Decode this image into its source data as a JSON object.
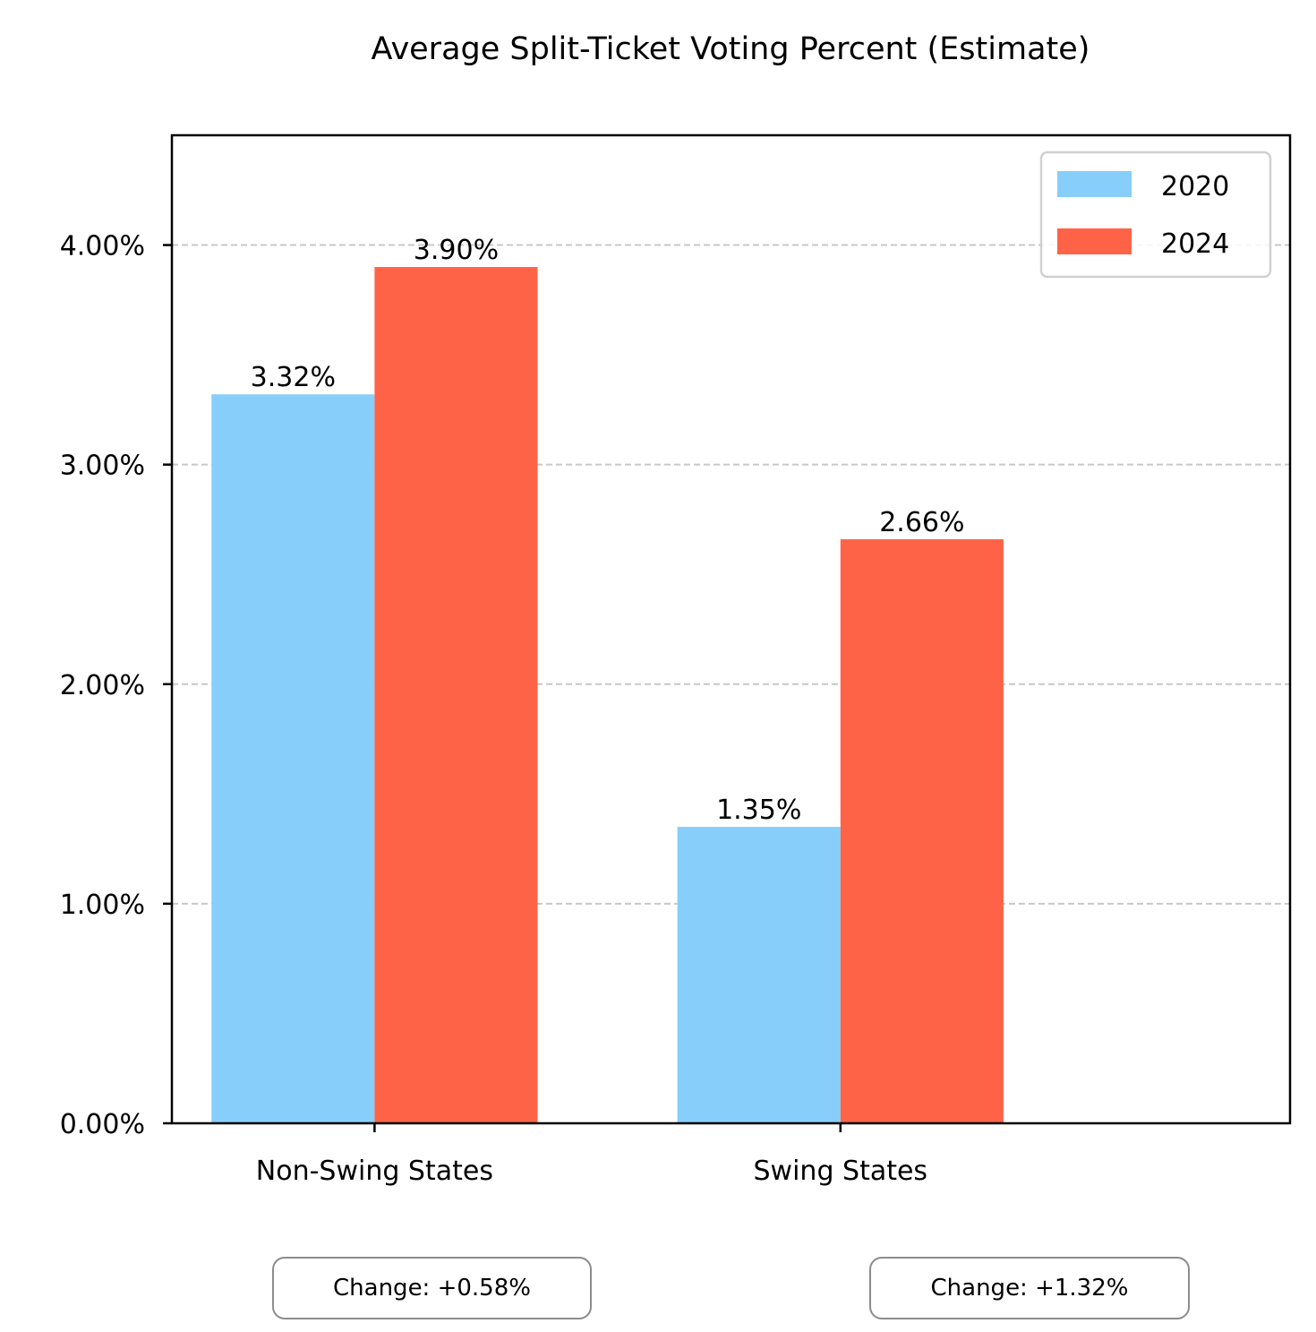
{
  "chart_data": {
    "type": "bar",
    "title": "Average Split-Ticket Voting Percent (Estimate)",
    "xlabel": "",
    "ylabel": "",
    "categories": [
      "Non-Swing States",
      "Swing States"
    ],
    "series": [
      {
        "name": "2020",
        "color": "#87CEFA",
        "values": [
          3.32,
          1.35
        ],
        "labels": [
          "3.32%",
          "1.35%"
        ]
      },
      {
        "name": "2024",
        "color": "#FF6347",
        "values": [
          3.9,
          2.66
        ],
        "labels": [
          "3.90%",
          "2.66%"
        ]
      }
    ],
    "ylim": [
      0,
      4.5
    ],
    "yticks": [
      0,
      1,
      2,
      3,
      4
    ],
    "ytick_labels": [
      "0.00%",
      "1.00%",
      "2.00%",
      "3.00%",
      "4.00%"
    ],
    "grid": "y-dashed",
    "legend_position": "top-right",
    "annotations": [
      "Change: +0.58%",
      "Change: +1.32%"
    ]
  }
}
